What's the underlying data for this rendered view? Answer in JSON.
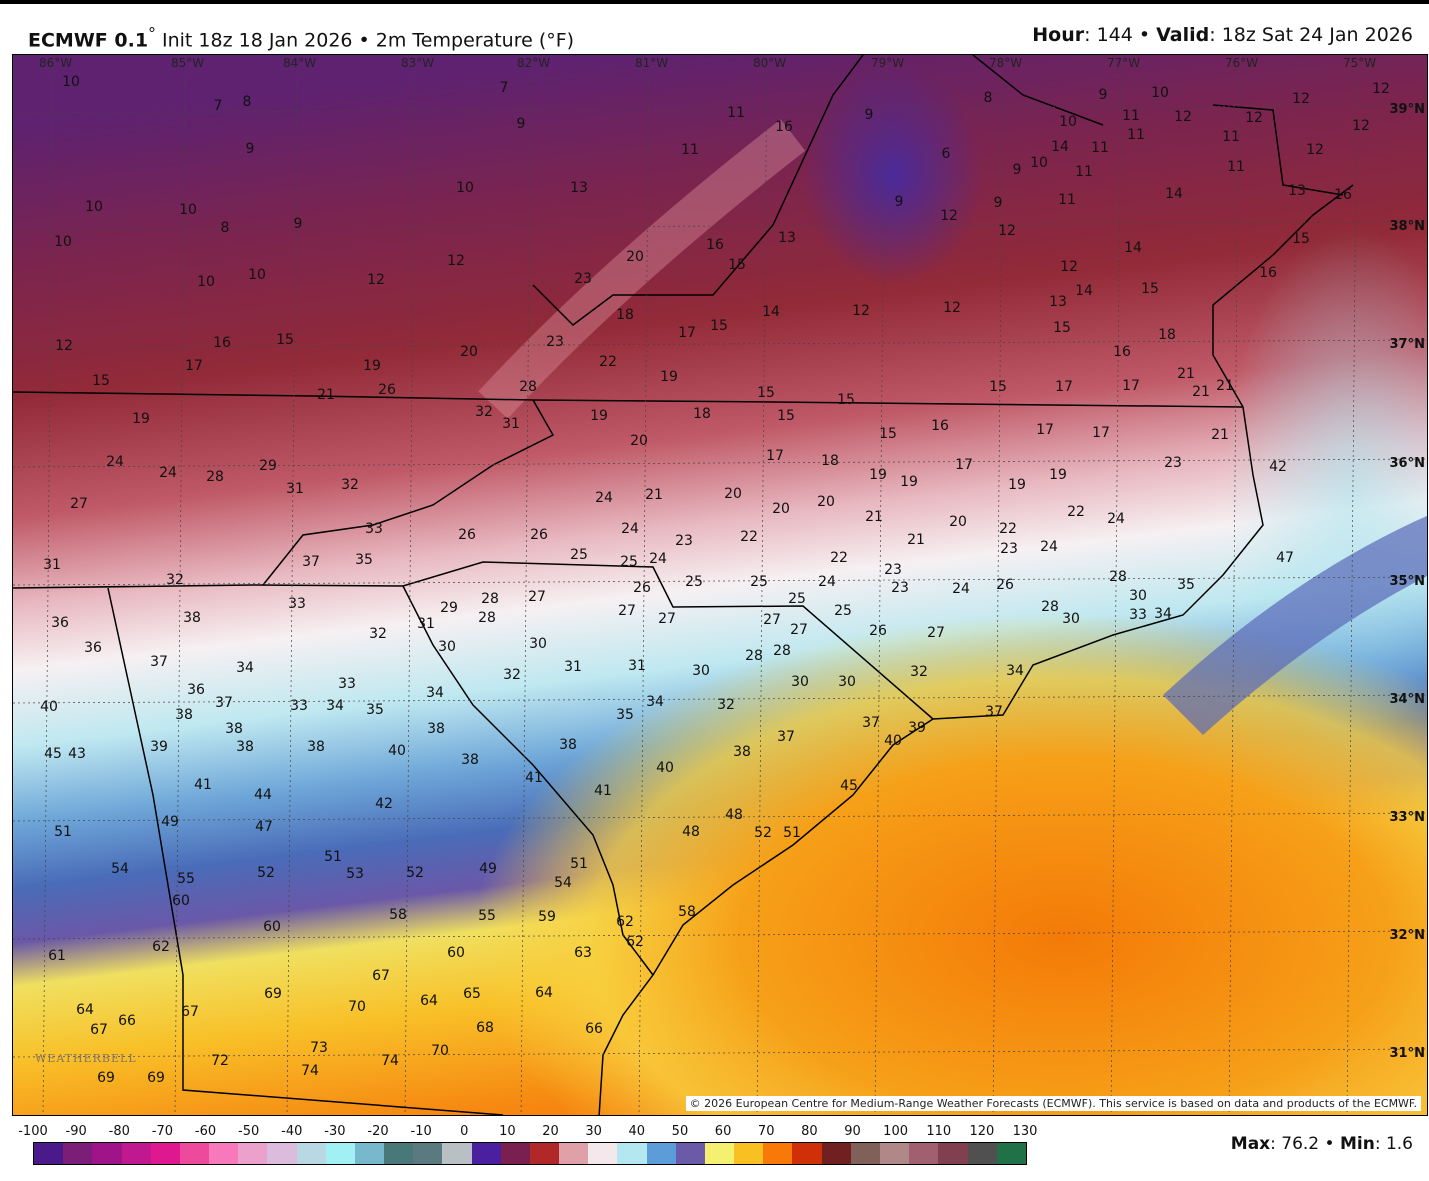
{
  "header": {
    "model": "ECMWF 0.1",
    "model_deg": "°",
    "init": " Init 18z 18 Jan 2026 • 2m Temperature (°F)",
    "hour_label": "Hour",
    "hour_value": ": 144 • ",
    "valid_label": "Valid",
    "valid_value": ": 18z Sat 24 Jan 2026"
  },
  "map": {
    "longitudes": [
      "86°W",
      "85°W",
      "84°W",
      "83°W",
      "82°W",
      "81°W",
      "80°W",
      "79°W",
      "78°W",
      "77°W",
      "76°W",
      "75°W"
    ],
    "latitudes": [
      "39°N",
      "38°N",
      "37°N",
      "36°N",
      "35°N",
      "34°N",
      "33°N",
      "32°N",
      "31°N"
    ],
    "temperature_labels": [
      10,
      7,
      8,
      9,
      7,
      9,
      11,
      16,
      11,
      9,
      6,
      8,
      9,
      10,
      10,
      11,
      11,
      12,
      12,
      12,
      12,
      12,
      12,
      11,
      11,
      14,
      11,
      10,
      9,
      11,
      11,
      14,
      13,
      16,
      15,
      16,
      14,
      12,
      14,
      13,
      15,
      15,
      18,
      16,
      21,
      21,
      21,
      17,
      15,
      17,
      17,
      17,
      21,
      42,
      23,
      19,
      19,
      17,
      16,
      15,
      15,
      15,
      15,
      18,
      19,
      19,
      20,
      22,
      23,
      23,
      20,
      18,
      17,
      15,
      16,
      15,
      13,
      14,
      12,
      12,
      12,
      9,
      9,
      12,
      13,
      10,
      12,
      12,
      20,
      19,
      26,
      21,
      28,
      32,
      31,
      10,
      10,
      8,
      9,
      10,
      10,
      10,
      12,
      16,
      15,
      17,
      15,
      19,
      24,
      24,
      28,
      29,
      31,
      32,
      27,
      33,
      37,
      35,
      26,
      26,
      25,
      24,
      21,
      24,
      25,
      24,
      23,
      20,
      17,
      18,
      20,
      20,
      22,
      19,
      19,
      21,
      21,
      20,
      22,
      23,
      24,
      22,
      24,
      22,
      24,
      23,
      23,
      24,
      26,
      25,
      25,
      26,
      25,
      25,
      26,
      27,
      27,
      27,
      27,
      27,
      27,
      28,
      28,
      29,
      31,
      32,
      30,
      30,
      32,
      31,
      31,
      30,
      28,
      28,
      30,
      30,
      32,
      34,
      28,
      30,
      28,
      30,
      33,
      34,
      35,
      47,
      31,
      32,
      33,
      38,
      36,
      36,
      37,
      34,
      36,
      37,
      38,
      33,
      34,
      33,
      35,
      34,
      38,
      38,
      38,
      39,
      38,
      40,
      38,
      38,
      40,
      45,
      43,
      32,
      35,
      34,
      37,
      39,
      40,
      37,
      37,
      38,
      40,
      41,
      41,
      41,
      44,
      42,
      47,
      49,
      51,
      48,
      48,
      52,
      51,
      45,
      54,
      55,
      60,
      52,
      51,
      53,
      52,
      49,
      51,
      54,
      58,
      55,
      59,
      60,
      62,
      62,
      62,
      61,
      60,
      63,
      67,
      69,
      70,
      64,
      65,
      64,
      68,
      66,
      64,
      67,
      66,
      67,
      73,
      74,
      74,
      70,
      72,
      69,
      69,
      58
    ],
    "attribution": "© 2026 European Centre for Medium-Range Weather Forecasts (ECMWF). This service is based on data and products of the ECMWF.",
    "logo": "WEATHERBELL",
    "field_colors": {
      "cold": "#5a1f6e",
      "red": "#8e2a3c",
      "pink": "#d88a96",
      "white": "#f4eef0",
      "cyan": "#a8e4ef",
      "blue": "#4f7fc4",
      "purple": "#5a52a8",
      "yellow": "#f4e25a",
      "orange": "#f48a10"
    }
  },
  "colorbar": {
    "ticks": [
      "-100",
      "-90",
      "-80",
      "-70",
      "-60",
      "-50",
      "-40",
      "-30",
      "-20",
      "-10",
      "0",
      "10",
      "20",
      "30",
      "40",
      "50",
      "60",
      "70",
      "80",
      "90",
      "100",
      "110",
      "120",
      "130"
    ],
    "range": [
      -100,
      130
    ],
    "colors": [
      "#4a1a8a",
      "#7a1e78",
      "#a0148a",
      "#c0188e",
      "#e01890",
      "#ee4a9c",
      "#f878bc",
      "#eca0cc",
      "#dcbcdc",
      "#b8d8e4",
      "#a0f0f4",
      "#78b8cc",
      "#487878",
      "#5a7a80",
      "#b8c0c4",
      "#4a20a0",
      "#7a2050",
      "#b02828",
      "#e0a0a8",
      "#f4e8ec",
      "#b4e8f0",
      "#5c9cd8",
      "#6a5aa8",
      "#f4f070",
      "#f8c020",
      "#f87808",
      "#d03008",
      "#702020",
      "#806058",
      "#b08888",
      "#a06070",
      "#804050",
      "#505050",
      "#207048"
    ]
  },
  "stats": {
    "max_label": "Max",
    "max_value": ": 76.2 • ",
    "min_label": "Min",
    "min_value": ": 1.6"
  }
}
